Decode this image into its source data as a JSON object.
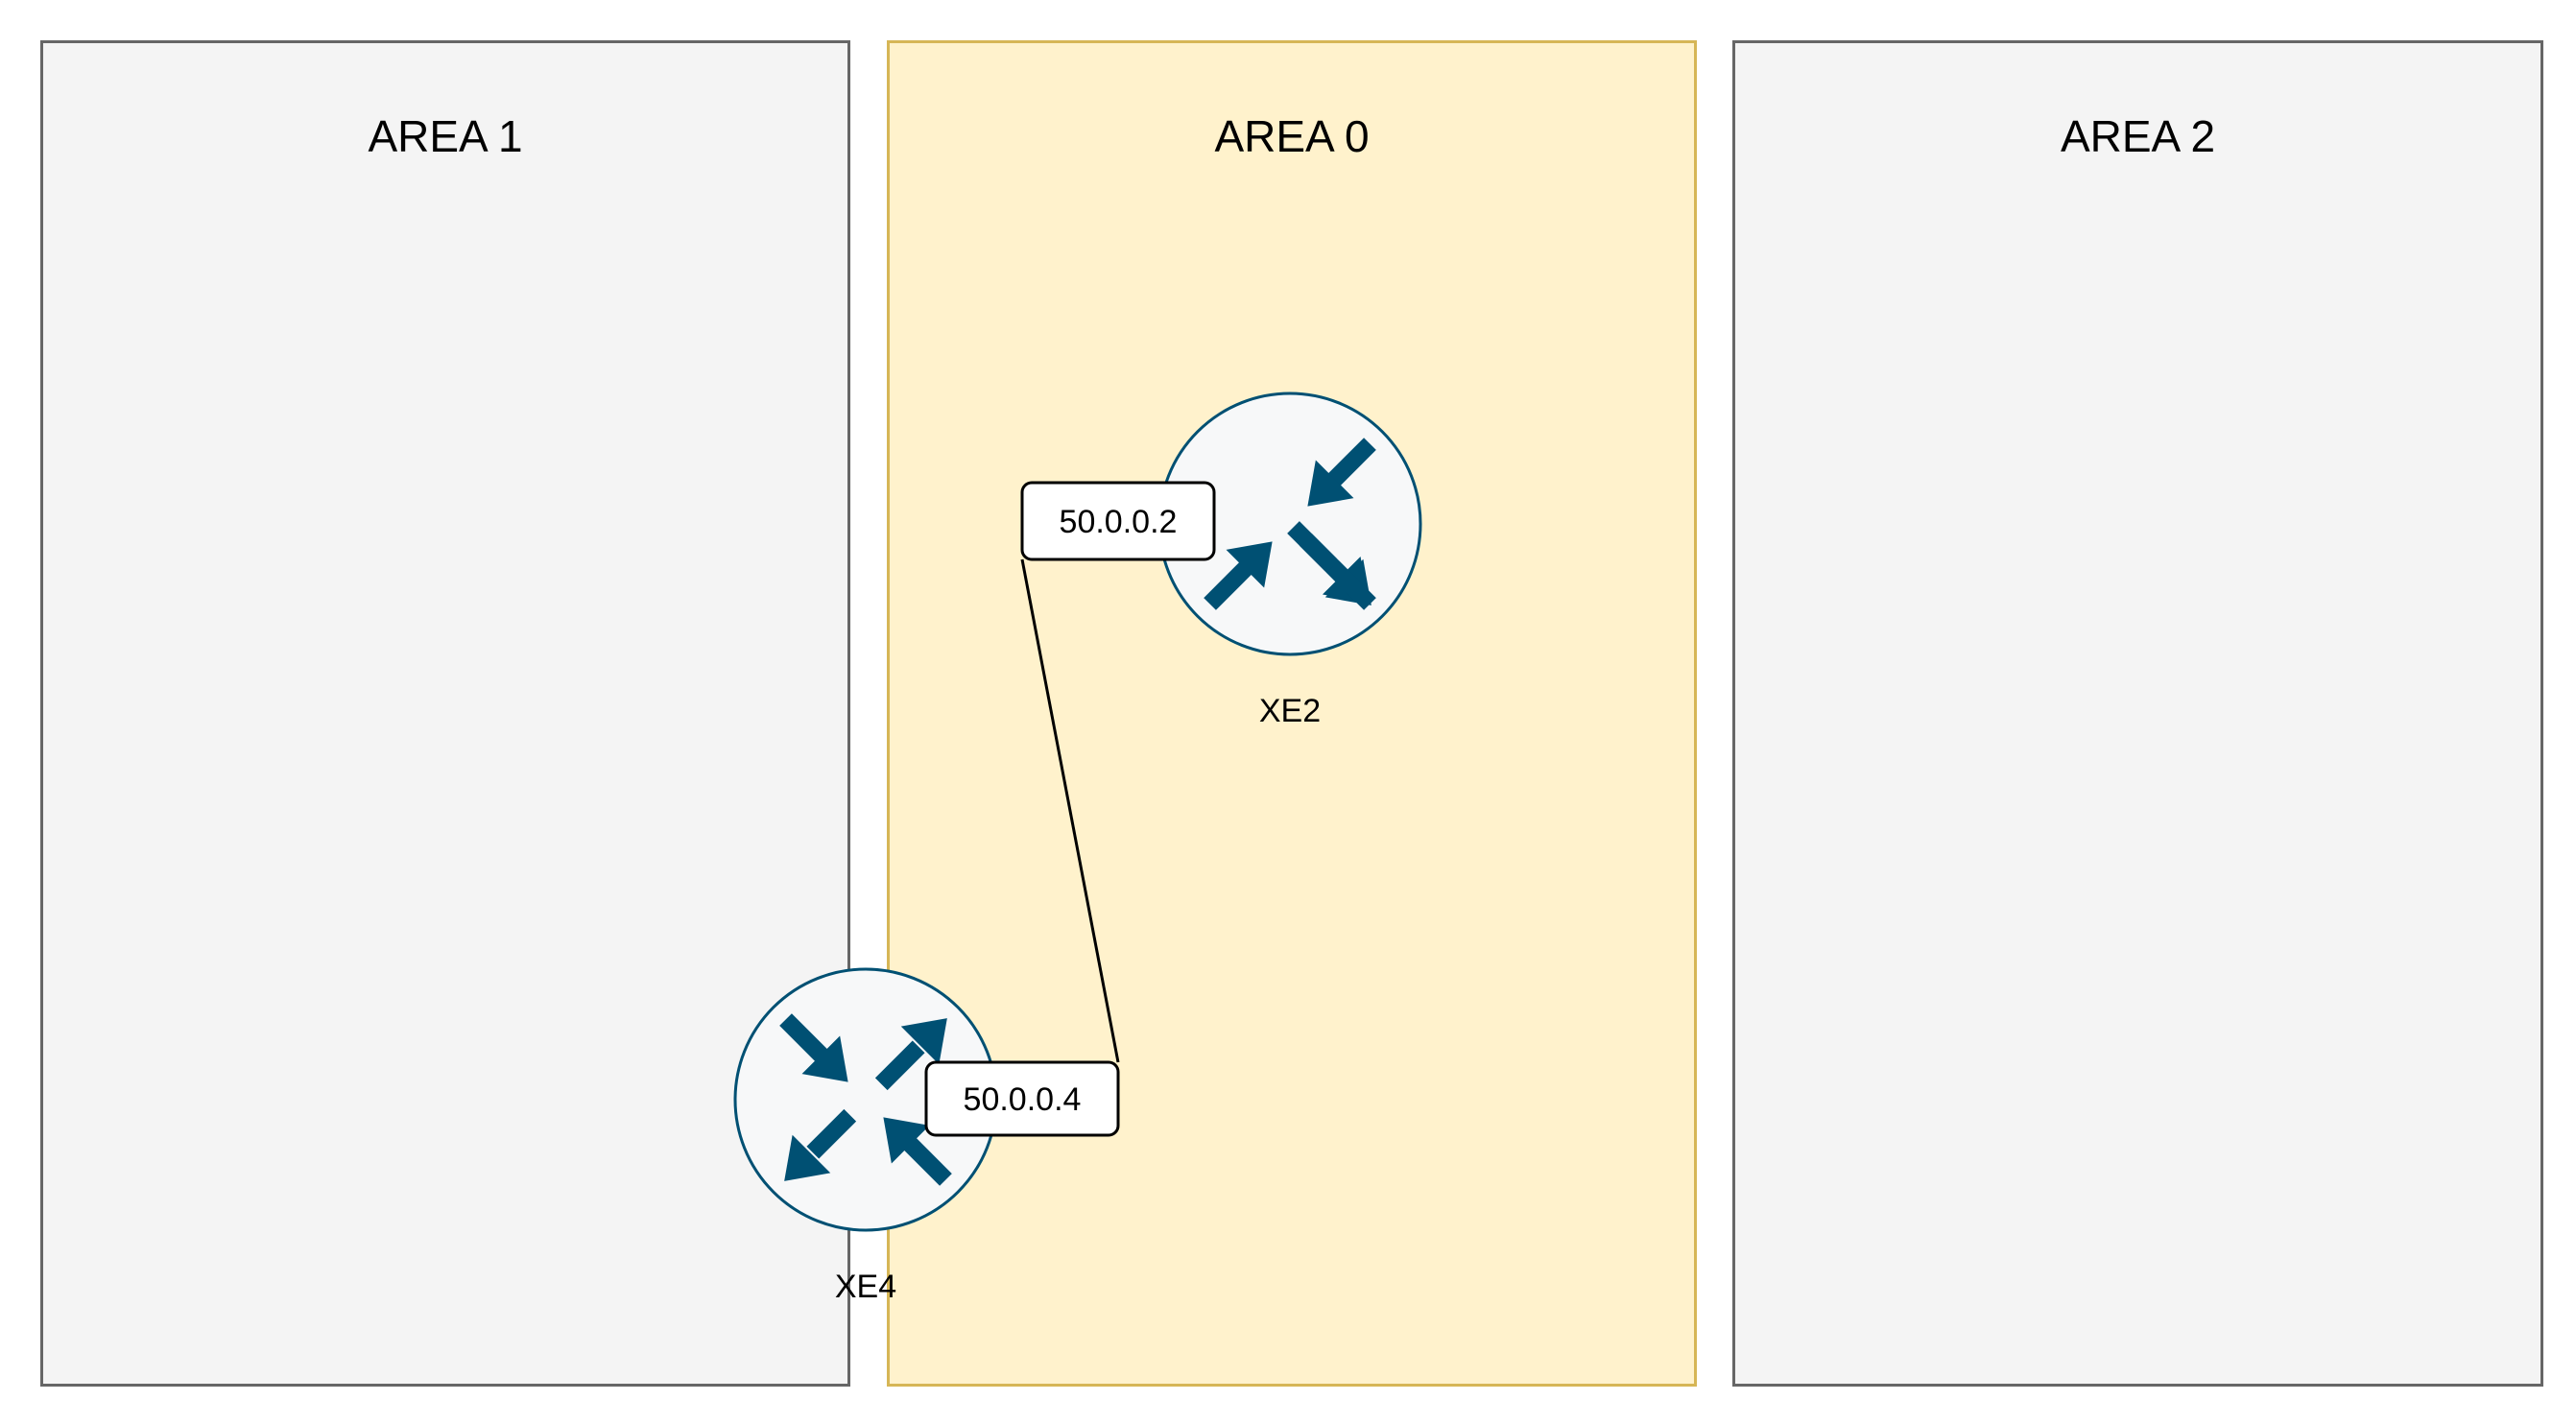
{
  "areas": [
    {
      "title": "AREA 1",
      "fill": "#f4f4f4",
      "stroke": "#666666"
    },
    {
      "title": "AREA 0",
      "fill": "#fff2cc",
      "stroke": "#d6b656"
    },
    {
      "title": "AREA 2",
      "fill": "#f4f4f4",
      "stroke": "#666666"
    }
  ],
  "routers": [
    {
      "name": "XE2",
      "interface_ip": "50.0.0.2",
      "icon": "router-icon"
    },
    {
      "name": "XE4",
      "interface_ip": "50.0.0.4",
      "icon": "router-icon"
    }
  ],
  "links": [
    {
      "from": "XE2",
      "to": "XE4"
    }
  ],
  "colors": {
    "router_icon": "#005073",
    "router_bg": "#f7f8f9",
    "link": "#000000"
  }
}
